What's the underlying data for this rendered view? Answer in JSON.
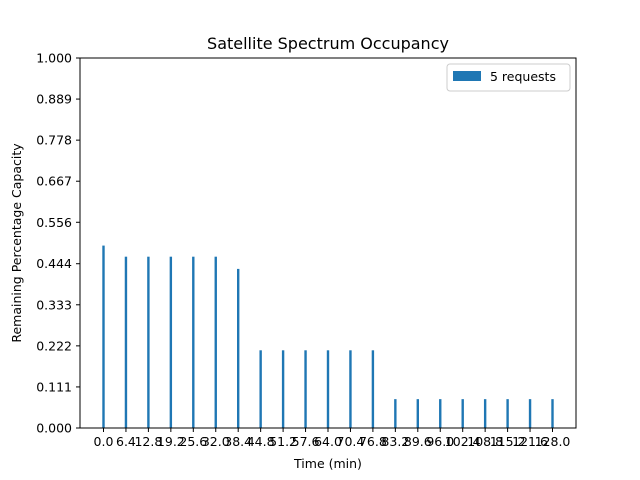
{
  "chart_data": {
    "type": "bar",
    "title": "Satellite Spectrum Occupancy",
    "xlabel": "Time (min)",
    "ylabel": "Remaining Percentage Capacity",
    "ylim": [
      0,
      1
    ],
    "yticks": [
      "0.000",
      "0.111",
      "0.222",
      "0.333",
      "0.444",
      "0.556",
      "0.667",
      "0.778",
      "0.889",
      "1.000"
    ],
    "categories": [
      "0.0",
      "6.4",
      "12.8",
      "19.2",
      "25.6",
      "32.0",
      "38.4",
      "44.8",
      "51.2",
      "57.6",
      "64.0",
      "70.4",
      "76.8",
      "83.2",
      "89.6",
      "96.0",
      "102.4",
      "108.8",
      "115.2",
      "121.6",
      "128.0"
    ],
    "legend_position": "top-right",
    "grid": false,
    "series": [
      {
        "name": "5 requests",
        "color": "#1f77b4",
        "values": [
          0.493,
          0.463,
          0.463,
          0.463,
          0.463,
          0.463,
          0.43,
          0.21,
          0.21,
          0.21,
          0.21,
          0.21,
          0.21,
          0.078,
          0.078,
          0.078,
          0.078,
          0.078,
          0.078,
          0.078,
          0.078
        ]
      }
    ]
  }
}
